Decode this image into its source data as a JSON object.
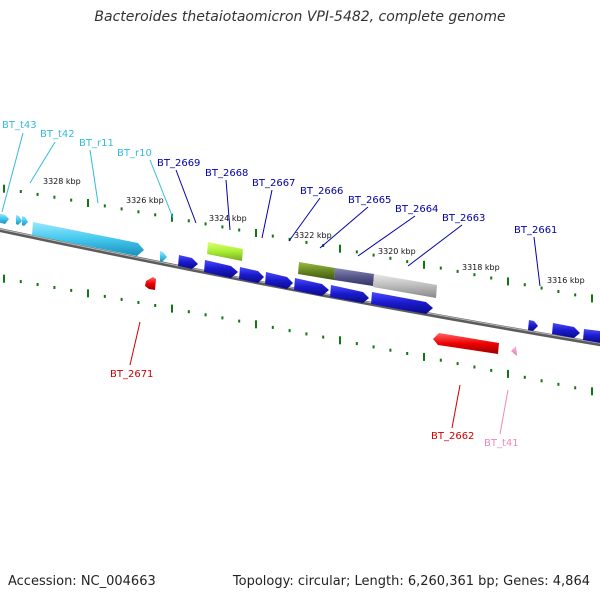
{
  "title": "Bacteroides thetaiotaomicron VPI-5482, complete genome",
  "accession_text": "Accession: NC_004663",
  "summary_text": "Topology: circular; Length: 6,260,361 bp; Genes: 4,864",
  "ticks": [
    "3328 kbp",
    "3326 kbp",
    "3324 kbp",
    "3322 kbp",
    "3320 kbp",
    "3318 kbp",
    "3316 kbp"
  ],
  "forward_labels": [
    "BT_t43",
    "BT_t42",
    "BT_r11",
    "BT_r10",
    "BT_2669",
    "BT_2668",
    "BT_2667",
    "BT_2666",
    "BT_2665",
    "BT_2664",
    "BT_2663",
    "BT_2661"
  ],
  "reverse_labels": [
    "BT_2671",
    "BT_2662",
    "BT_t41"
  ],
  "colors": {
    "trna": "#33bbdd",
    "rrna": "#33bbdd",
    "cds_forward": "#1a1acc",
    "cds_reverse": "#dd0000",
    "green_feature": "#aaee33",
    "olive_feature": "#668822",
    "slate_feature": "#555588",
    "gray_feature": "#bbbbbb",
    "pink_feature": "#ee88bb",
    "backbone": "#777777",
    "tick_green": "#117711",
    "forward_label": "#0000aa",
    "reverse_label": "#cc0000"
  }
}
